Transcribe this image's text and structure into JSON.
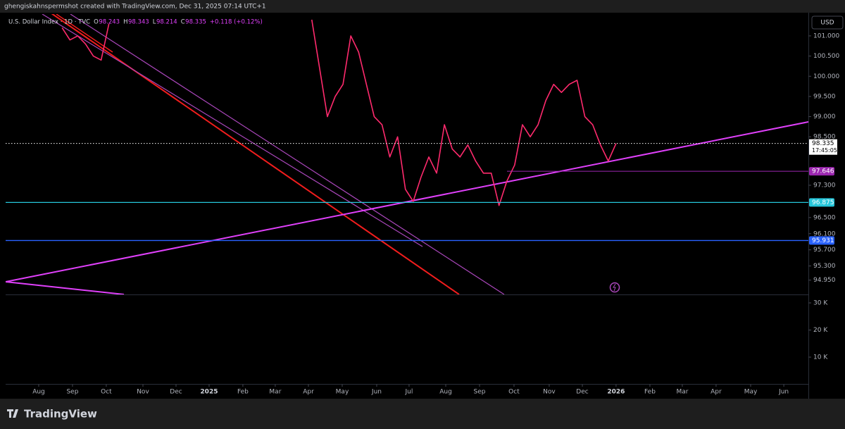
{
  "header": "ghengiskahnspermshot created with TradingView.com, Dec 31, 2025 07:14 UTC+1",
  "footer": "TradingView",
  "legend": {
    "symbol": "U.S. Dollar Index · 1D · TVC",
    "open_label": "O",
    "open": "98.243",
    "high_label": "H",
    "high": "98.343",
    "low_label": "L",
    "low": "98.214",
    "close_label": "C",
    "close": "98.335",
    "change": "+0.118 (+0.12%)"
  },
  "chart_data": {
    "type": "line",
    "currency": "USD",
    "categories": [
      null,
      null,
      null,
      null,
      null,
      null,
      null,
      null,
      null,
      null,
      null,
      null,
      null,
      null,
      null,
      null,
      null,
      null,
      null,
      null,
      null,
      null,
      null,
      null,
      null,
      null,
      null,
      null,
      null,
      null,
      null,
      null,
      null,
      null,
      null,
      null,
      null,
      null,
      null,
      null,
      null,
      null,
      null,
      null,
      null,
      null,
      null,
      null,
      null,
      null,
      null,
      null,
      null,
      null,
      null,
      null,
      null,
      null,
      null,
      null,
      null,
      null,
      null,
      null,
      null,
      null,
      null,
      null,
      null,
      null,
      null,
      null,
      null,
      null,
      null
    ],
    "series": [
      {
        "name": "U.S. Dollar Index",
        "color": "#ff2a6d",
        "values": [
          null,
          null,
          null,
          101.2,
          100.9,
          101.0,
          100.8,
          100.5,
          100.4,
          101.3,
          null,
          null,
          null,
          null,
          null,
          null,
          null,
          null,
          null,
          null,
          null,
          null,
          null,
          null,
          null,
          null,
          null,
          null,
          null,
          null,
          null,
          null,
          null,
          null,
          null,
          101.4,
          100.2,
          99.0,
          99.5,
          99.8,
          101.0,
          100.6,
          99.8,
          99.0,
          98.8,
          98.0,
          98.5,
          97.2,
          96.9,
          97.5,
          98.0,
          97.6,
          98.8,
          98.2,
          98.0,
          98.3,
          97.9,
          97.6,
          97.6,
          96.8,
          97.4,
          97.8,
          98.8,
          98.5,
          98.8,
          99.4,
          99.8,
          99.6,
          99.8,
          99.9,
          99.0,
          98.8,
          98.3,
          97.9,
          98.335
        ]
      }
    ],
    "xlim": [
      -4.24,
      98.65
    ],
    "xticks": [
      {
        "value": 0,
        "label": "Aug"
      },
      {
        "value": 4.33,
        "label": "Sep"
      },
      {
        "value": 8.66,
        "label": "Oct"
      },
      {
        "value": 13.36,
        "label": "Nov"
      },
      {
        "value": 17.6,
        "label": "Dec"
      },
      {
        "value": 21.84,
        "label": "2025"
      },
      {
        "value": 26.17,
        "label": "Feb"
      },
      {
        "value": 30.32,
        "label": "Mar"
      },
      {
        "value": 34.57,
        "label": "Apr"
      },
      {
        "value": 38.9,
        "label": "May"
      },
      {
        "value": 43.32,
        "label": "Jun"
      },
      {
        "value": 47.47,
        "label": "Jul"
      },
      {
        "value": 52.17,
        "label": "Aug"
      },
      {
        "value": 56.5,
        "label": "Sep"
      },
      {
        "value": 60.92,
        "label": "Oct"
      },
      {
        "value": 65.43,
        "label": "Nov"
      },
      {
        "value": 69.68,
        "label": "Dec"
      },
      {
        "value": 74.0,
        "label": "2026"
      },
      {
        "value": 78.34,
        "label": "Feb"
      },
      {
        "value": 82.49,
        "label": "Mar"
      },
      {
        "value": 86.82,
        "label": "Apr"
      },
      {
        "value": 91.25,
        "label": "May"
      },
      {
        "value": 95.5,
        "label": "Jun"
      }
    ],
    "ylim": [
      94.595,
      101.54
    ],
    "yticks": [
      {
        "value": 101,
        "label": "101.000"
      },
      {
        "value": 100.5,
        "label": "100.500"
      },
      {
        "value": 100,
        "label": "100.000"
      },
      {
        "value": 99.5,
        "label": "99.500"
      },
      {
        "value": 99,
        "label": "99.000"
      },
      {
        "value": 98.5,
        "label": "98.500"
      },
      {
        "value": 97.3,
        "label": "97.300"
      },
      {
        "value": 96.5,
        "label": "96.500"
      },
      {
        "value": 96.1,
        "label": "96.100"
      },
      {
        "value": 95.7,
        "label": "95.700"
      },
      {
        "value": 95.3,
        "label": "95.300"
      },
      {
        "value": 94.95,
        "label": "94.950"
      }
    ],
    "current_price": {
      "value": 98.335,
      "countdown": "17:45:05"
    },
    "levels": [
      {
        "value": 97.646,
        "color": "#9c27b0"
      },
      {
        "value": 96.875,
        "color": "#26c6da"
      },
      {
        "value": 95.931,
        "color": "#2962ff"
      }
    ],
    "volume_axis": {
      "ylim": [
        0,
        32600
      ],
      "yticks": [
        {
          "value": 30000,
          "label": "30 K"
        },
        {
          "value": 20000,
          "label": "20 K"
        },
        {
          "value": 10000,
          "label": "10 K"
        }
      ]
    }
  }
}
